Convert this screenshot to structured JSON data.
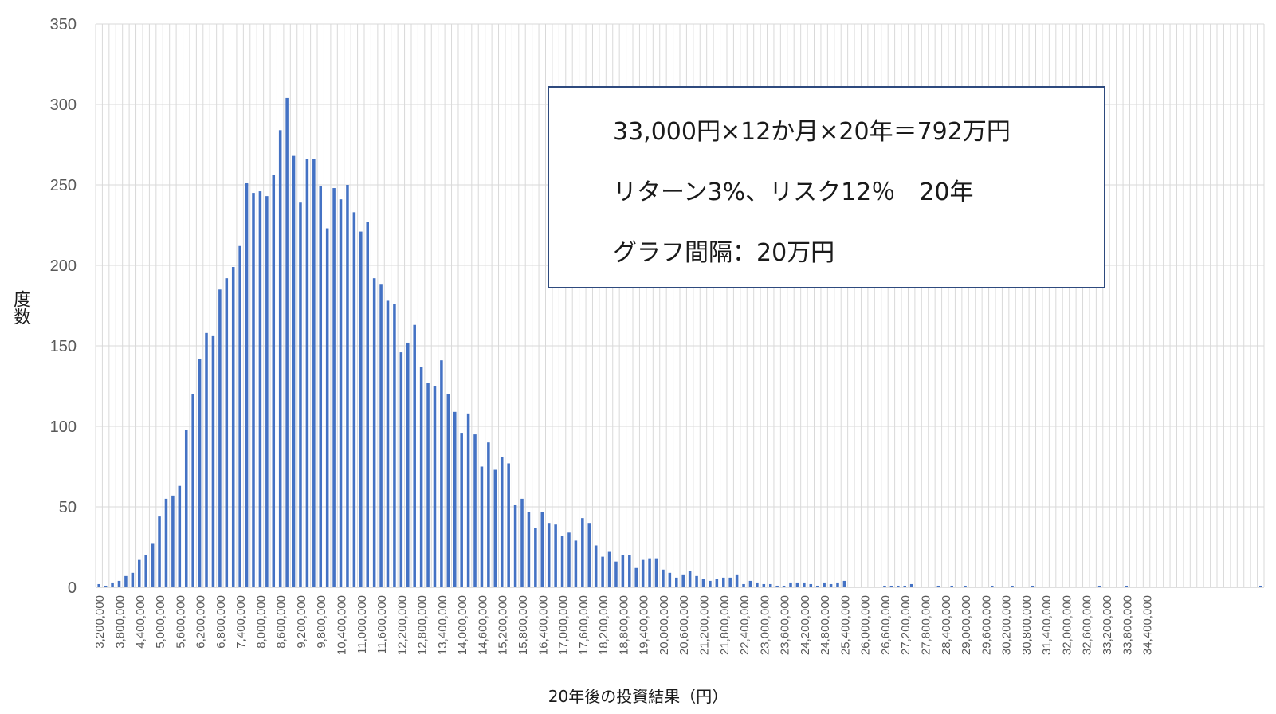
{
  "chart_data": {
    "type": "bar",
    "xlabel": "20年後の投資結果（円）",
    "ylabel": "度数",
    "ylim": [
      0,
      350
    ],
    "yticks": [
      0,
      50,
      100,
      150,
      200,
      250,
      300,
      350
    ],
    "grid": true,
    "x_start": 3200000,
    "x_step": 200000,
    "x_tick_labels": [
      "3,200,000",
      "3,800,000",
      "4,400,000",
      "5,000,000",
      "5,600,000",
      "6,200,000",
      "6,800,000",
      "7,400,000",
      "8,000,000",
      "8,600,000",
      "9,200,000",
      "9,800,000",
      "10,400,000",
      "11,000,000",
      "11,600,000",
      "12,200,000",
      "12,800,000",
      "13,400,000",
      "14,000,000",
      "14,600,000",
      "15,200,000",
      "15,800,000",
      "16,400,000",
      "17,000,000",
      "17,600,000",
      "18,200,000",
      "18,800,000",
      "19,400,000",
      "20,000,000",
      "20,600,000",
      "21,200,000",
      "21,800,000",
      "22,400,000",
      "23,000,000",
      "23,600,000",
      "24,200,000",
      "24,800,000",
      "25,400,000",
      "26,000,000",
      "26,600,000",
      "27,200,000",
      "27,800,000",
      "28,400,000",
      "29,000,000",
      "29,600,000",
      "30,200,000",
      "30,800,000",
      "31,400,000",
      "32,000,000",
      "32,600,000",
      "33,200,000",
      "33,800,000",
      "34,400,000"
    ],
    "values": [
      2,
      1,
      3,
      4,
      7,
      9,
      17,
      20,
      27,
      44,
      55,
      57,
      63,
      98,
      120,
      142,
      158,
      156,
      185,
      192,
      199,
      212,
      251,
      245,
      246,
      243,
      256,
      284,
      304,
      268,
      239,
      266,
      266,
      249,
      223,
      248,
      241,
      250,
      233,
      221,
      227,
      192,
      188,
      178,
      176,
      146,
      152,
      163,
      137,
      127,
      125,
      141,
      120,
      109,
      96,
      108,
      95,
      75,
      90,
      73,
      81,
      77,
      51,
      55,
      47,
      37,
      47,
      40,
      39,
      32,
      34,
      29,
      43,
      40,
      26,
      19,
      22,
      16,
      20,
      20,
      12,
      17,
      18,
      18,
      11,
      9,
      6,
      8,
      10,
      7,
      5,
      4,
      5,
      6,
      6,
      8,
      2,
      4,
      3,
      2,
      2,
      1,
      1,
      3,
      3,
      3,
      2,
      1,
      3,
      2,
      3,
      4,
      0,
      0,
      0,
      0,
      0,
      1,
      1,
      1,
      1,
      2,
      0,
      0,
      0,
      1,
      0,
      1,
      0,
      1,
      0,
      0,
      0,
      1,
      0,
      0,
      1,
      0,
      0,
      1,
      0,
      0,
      0,
      0,
      0,
      0,
      0,
      0,
      0,
      1,
      0,
      0,
      0,
      1,
      0,
      0,
      0,
      0,
      0,
      0,
      0,
      0,
      0,
      0,
      0,
      0,
      0,
      0,
      0,
      0,
      0,
      0,
      0,
      1
    ],
    "series_color": "#4472C4"
  },
  "info_box": {
    "line1": "33,000円×12か月×20年＝792万円",
    "line2": "リターン3%、リスク12％　20年",
    "line3": "グラフ間隔：20万円"
  }
}
